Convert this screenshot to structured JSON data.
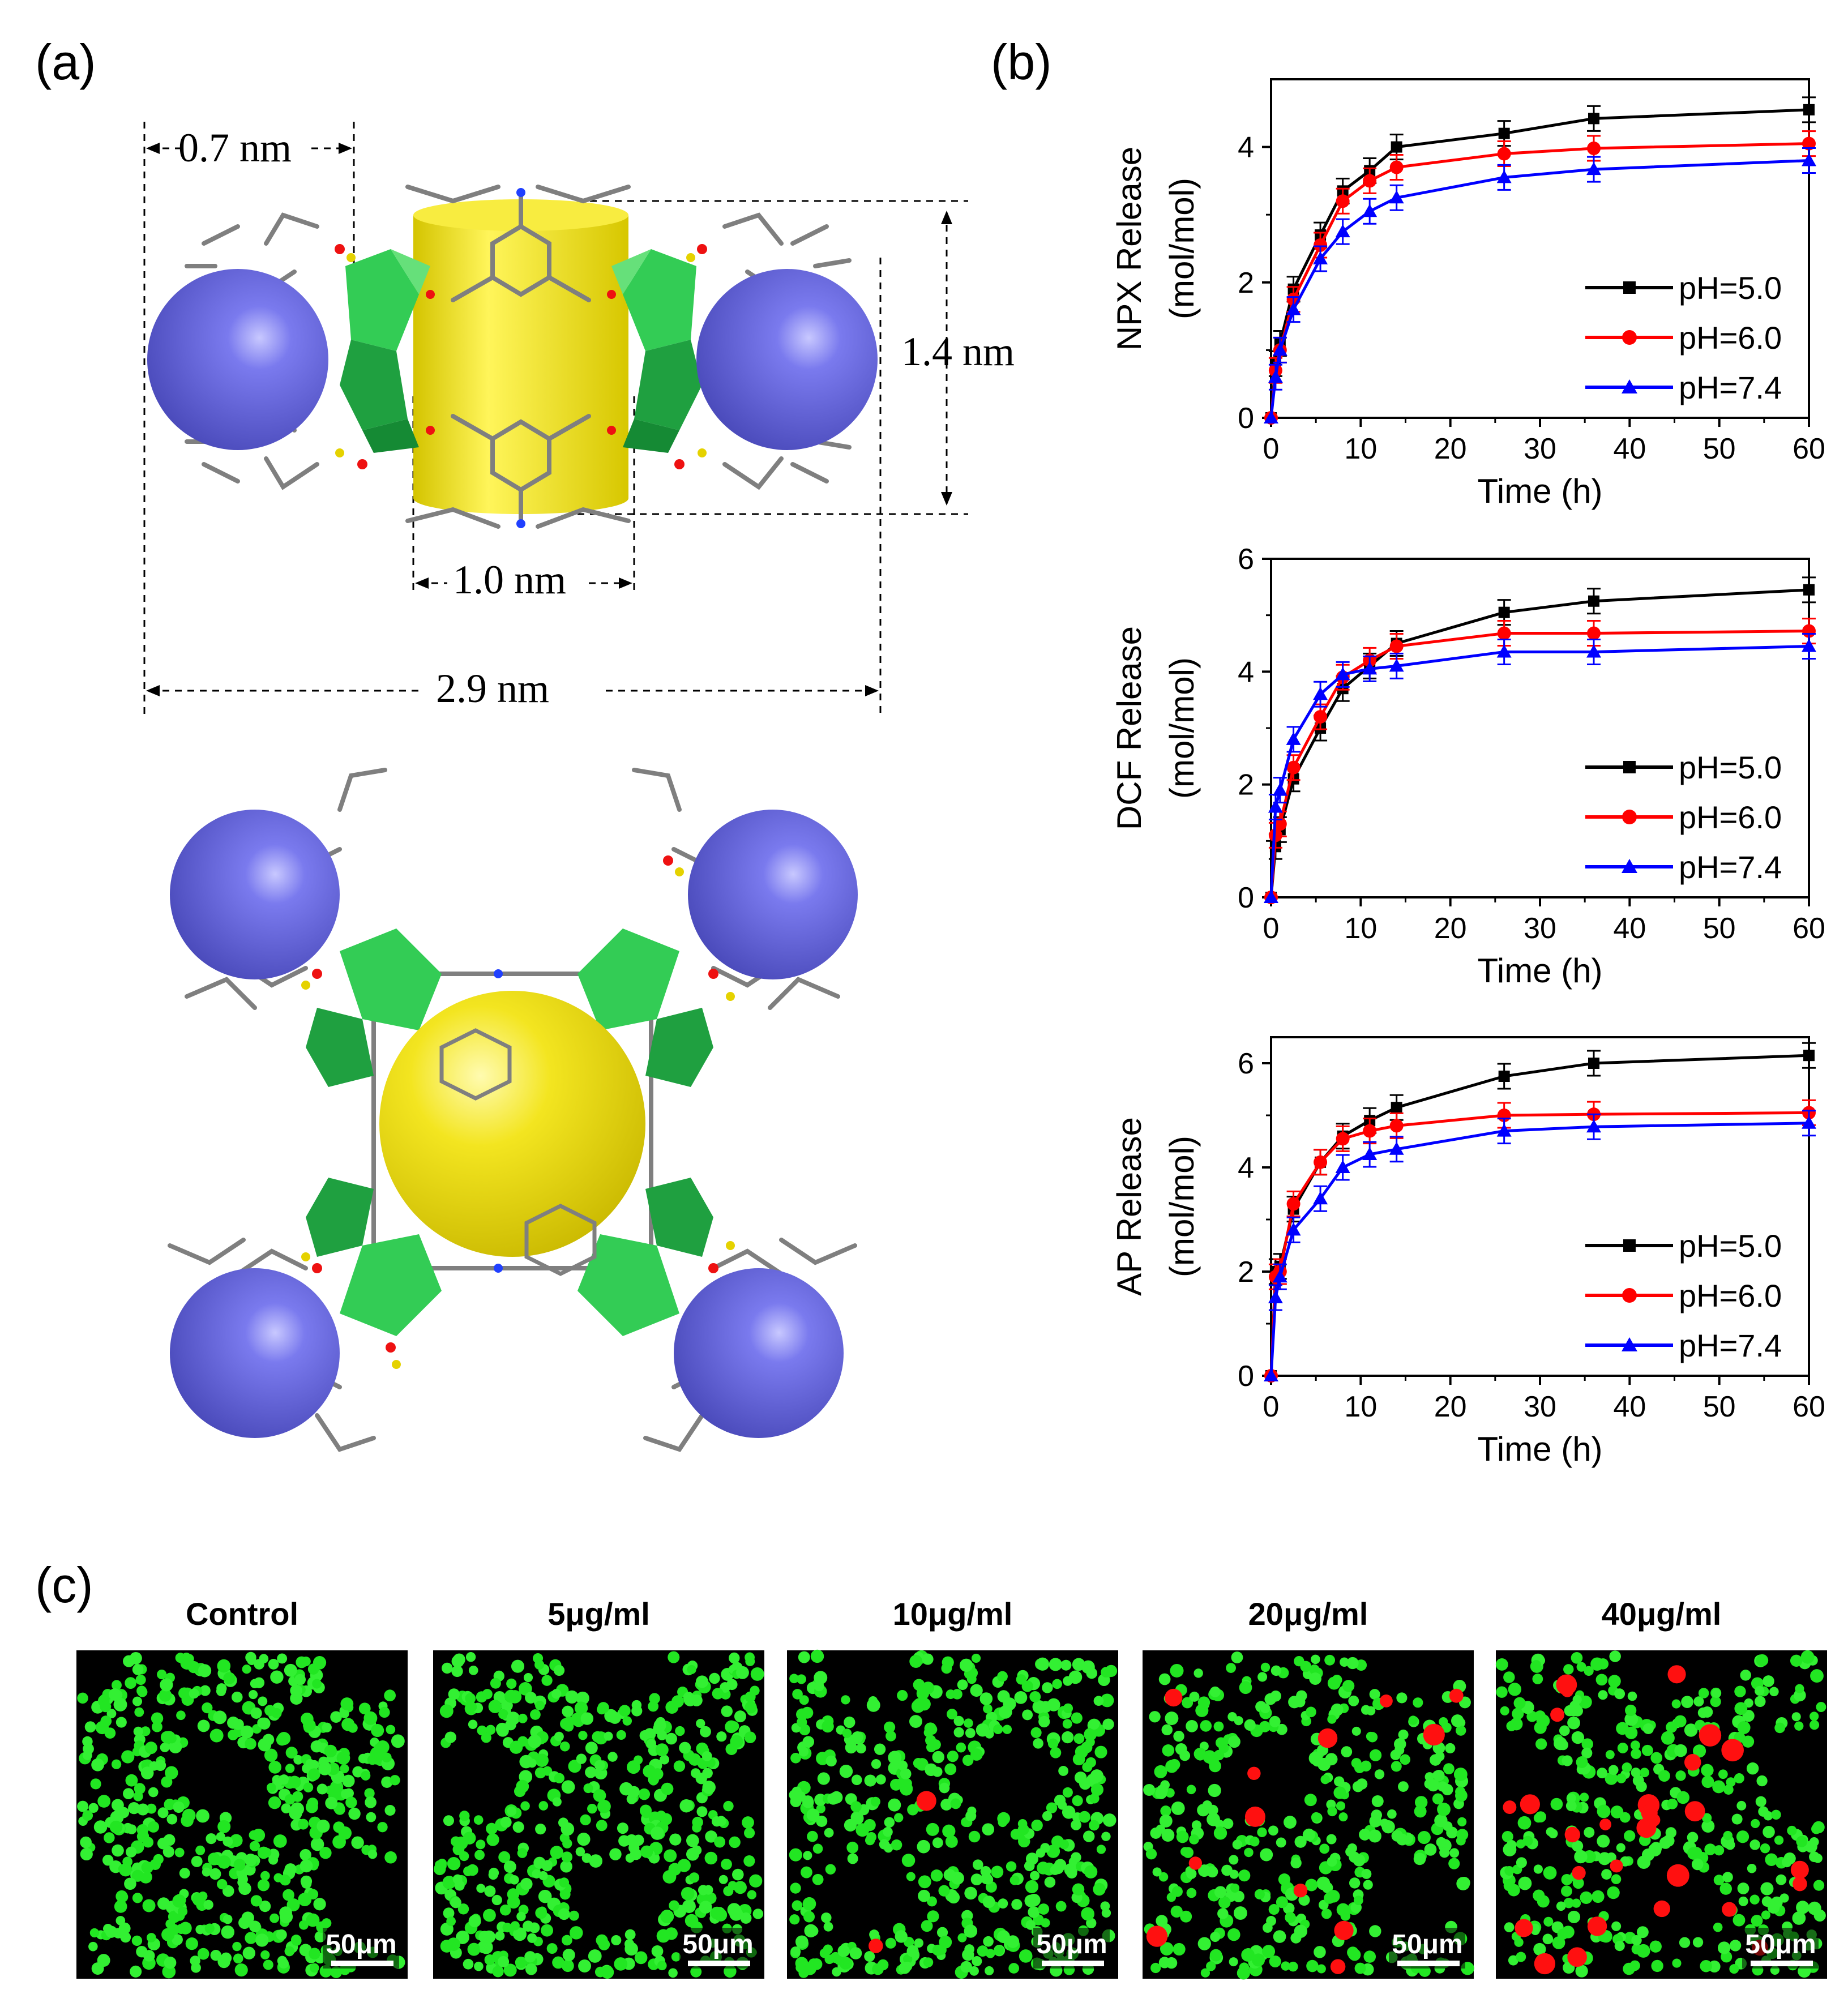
{
  "panels": {
    "a": {
      "letter": "(a)"
    },
    "b": {
      "letter": "(b)"
    },
    "c": {
      "letter": "(c)"
    }
  },
  "structure": {
    "dim_0_7": "0.7 nm",
    "dim_1_4": "1.4 nm",
    "dim_1_0": "1.0 nm",
    "dim_2_9": "2.9 nm",
    "colors": {
      "sphere": "#6f6fe0",
      "cylinder": "#f0e21a",
      "polyhedra": "#22c24a",
      "sticks": "#808080"
    }
  },
  "chart_data": [
    {
      "type": "line",
      "xlabel": "Time (h)",
      "ylabel": "NPX Release",
      "yunit": "(mol/mol)",
      "xlim": [
        0,
        60
      ],
      "ylim": [
        0,
        5
      ],
      "xticks": [
        0,
        10,
        20,
        30,
        40,
        50,
        60
      ],
      "yticks": [
        0,
        2,
        4
      ],
      "x": [
        0,
        0.5,
        1,
        2.5,
        5.5,
        8,
        11,
        14,
        26,
        36,
        60
      ],
      "series": [
        {
          "name": "pH=5.0",
          "color": "#000000",
          "marker": "square",
          "values": [
            0,
            0.8,
            1.1,
            1.9,
            2.7,
            3.35,
            3.65,
            4.0,
            4.2,
            4.42,
            4.55
          ]
        },
        {
          "name": "pH=6.0",
          "color": "#ff0000",
          "marker": "circle",
          "values": [
            0,
            0.7,
            1.0,
            1.75,
            2.55,
            3.2,
            3.5,
            3.7,
            3.9,
            3.98,
            4.05
          ]
        },
        {
          "name": "pH=7.4",
          "color": "#0000ff",
          "marker": "triangle",
          "values": [
            0,
            0.6,
            1.0,
            1.6,
            2.35,
            2.75,
            3.05,
            3.25,
            3.55,
            3.67,
            3.8
          ]
        }
      ],
      "legend_position": "bottom-right"
    },
    {
      "type": "line",
      "xlabel": "Time (h)",
      "ylabel": "DCF Release",
      "yunit": "(mol/mol)",
      "xlim": [
        0,
        60
      ],
      "ylim": [
        0,
        6
      ],
      "xticks": [
        0,
        10,
        20,
        30,
        40,
        50,
        60
      ],
      "yticks": [
        0,
        2,
        4,
        6
      ],
      "x": [
        0,
        0.5,
        1,
        2.5,
        5.5,
        8,
        11,
        14,
        26,
        36,
        60
      ],
      "series": [
        {
          "name": "pH=5.0",
          "color": "#000000",
          "marker": "square",
          "values": [
            0,
            0.9,
            1.2,
            2.1,
            3.0,
            3.7,
            4.1,
            4.5,
            5.05,
            5.25,
            5.45
          ]
        },
        {
          "name": "pH=6.0",
          "color": "#ff0000",
          "marker": "circle",
          "values": [
            0,
            1.1,
            1.3,
            2.3,
            3.2,
            3.9,
            4.2,
            4.45,
            4.68,
            4.68,
            4.72
          ]
        },
        {
          "name": "pH=7.4",
          "color": "#0000ff",
          "marker": "triangle",
          "values": [
            0,
            1.6,
            1.9,
            2.8,
            3.6,
            3.95,
            4.05,
            4.1,
            4.35,
            4.35,
            4.45
          ]
        }
      ],
      "legend_position": "bottom-right"
    },
    {
      "type": "line",
      "xlabel": "Time (h)",
      "ylabel": "AP Release",
      "yunit": "(mol/mol)",
      "xlim": [
        0,
        60
      ],
      "ylim": [
        0,
        6.5
      ],
      "xticks": [
        0,
        10,
        20,
        30,
        40,
        50,
        60
      ],
      "yticks": [
        0,
        2,
        4,
        6
      ],
      "x": [
        0,
        0.5,
        1,
        2.5,
        5.5,
        8,
        11,
        14,
        26,
        36,
        60
      ],
      "series": [
        {
          "name": "pH=5.0",
          "color": "#000000",
          "marker": "square",
          "values": [
            0,
            2.0,
            2.1,
            3.2,
            4.1,
            4.6,
            4.9,
            5.15,
            5.75,
            6.0,
            6.15
          ]
        },
        {
          "name": "pH=6.0",
          "color": "#ff0000",
          "marker": "circle",
          "values": [
            0,
            1.9,
            2.0,
            3.3,
            4.1,
            4.55,
            4.7,
            4.8,
            5.0,
            5.02,
            5.05
          ]
        },
        {
          "name": "pH=7.4",
          "color": "#0000ff",
          "marker": "triangle",
          "values": [
            0,
            1.5,
            1.9,
            2.8,
            3.4,
            4.0,
            4.25,
            4.35,
            4.7,
            4.78,
            4.85
          ]
        }
      ],
      "legend_position": "bottom-right"
    }
  ],
  "micrographs": [
    {
      "title": "Control",
      "scale": "50μm",
      "dead_fraction": 0.0
    },
    {
      "title": "5μg/ml",
      "scale": "50μm",
      "dead_fraction": 0.0
    },
    {
      "title": "10μg/ml",
      "scale": "50μm",
      "dead_fraction": 0.005
    },
    {
      "title": "20μg/ml",
      "scale": "50μm",
      "dead_fraction": 0.03
    },
    {
      "title": "40μg/ml",
      "scale": "50μm",
      "dead_fraction": 0.07
    }
  ]
}
